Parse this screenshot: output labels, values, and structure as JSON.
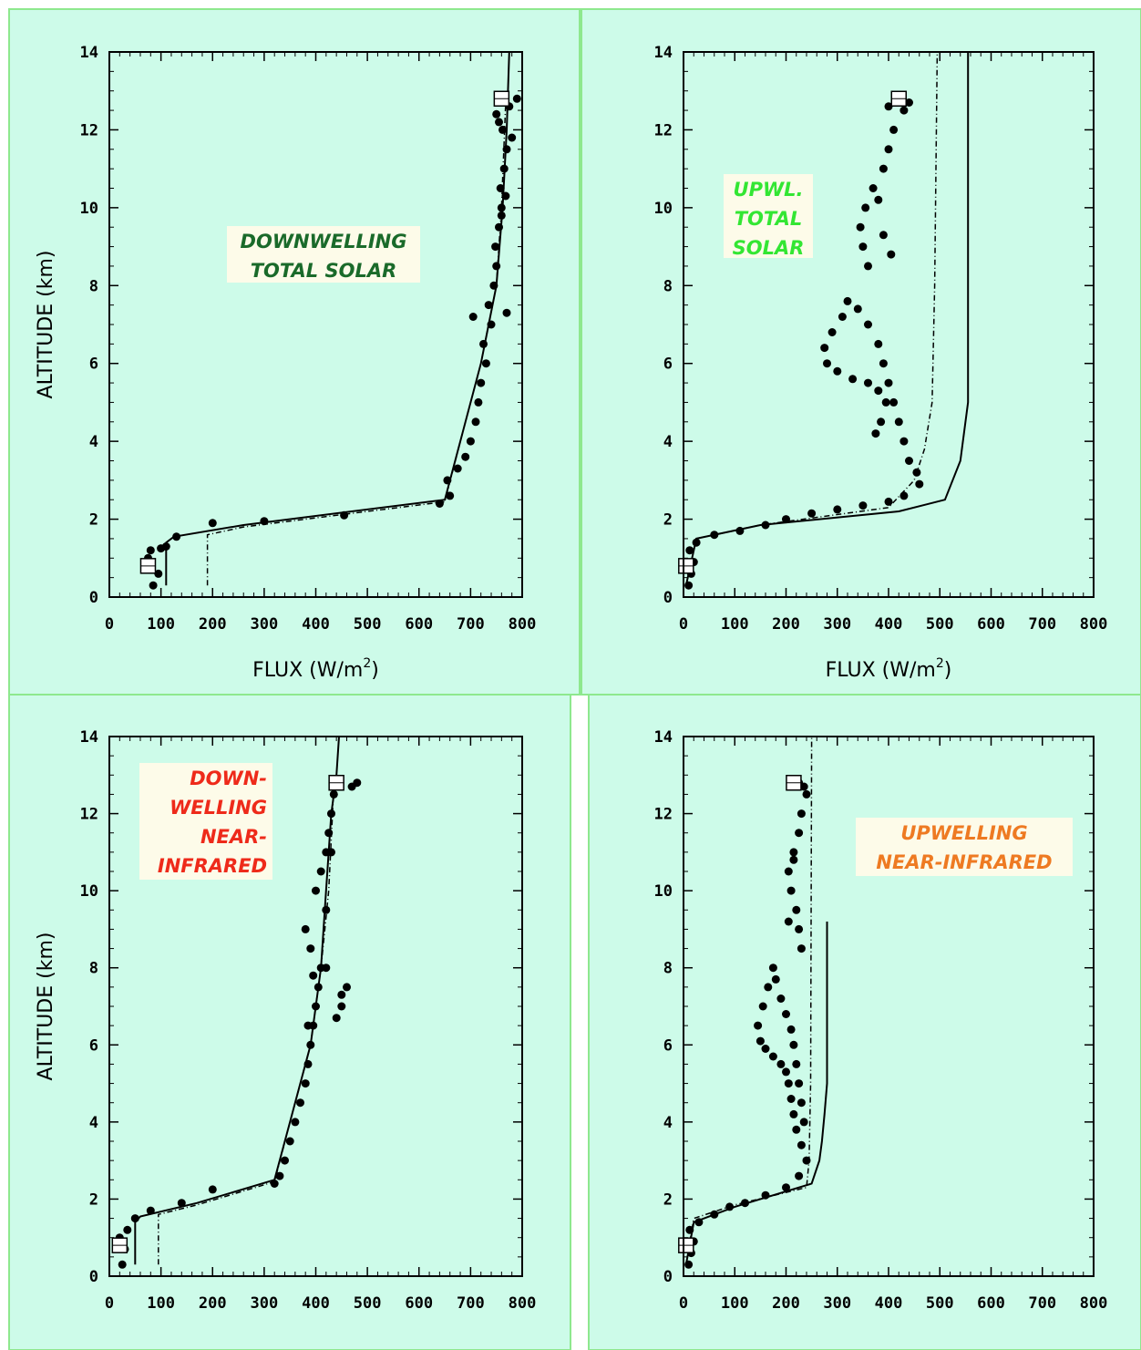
{
  "colors": {
    "panel_background": "#cdfbe9",
    "panel_border": "#8ee88e",
    "label_box": "#fdfbe9",
    "ink": "#000000"
  },
  "chart_data": [
    {
      "type": "line",
      "annotation": [
        "DOWNWELLING",
        "TOTAL SOLAR"
      ],
      "annotation_color": "#1a6a2a",
      "xlabel": "FLUX (W/m",
      "xlabel_superscript": "2",
      "xlabel_suffix": ")",
      "ylabel": "ALTITUDE (km)",
      "xlim": [
        0,
        800
      ],
      "ylim": [
        0,
        14
      ],
      "xticks": [
        0,
        100,
        200,
        300,
        400,
        500,
        600,
        700,
        800
      ],
      "yticks": [
        0,
        2,
        4,
        6,
        8,
        10,
        12,
        14
      ],
      "grid": false,
      "series": [
        {
          "kind": "solid",
          "x": [
            110,
            110,
            125,
            260,
            650,
            680,
            720,
            750,
            762,
            770,
            775
          ],
          "y": [
            0.3,
            1.4,
            1.55,
            1.85,
            2.5,
            4,
            6,
            8,
            10,
            12,
            14
          ]
        },
        {
          "kind": "dash-dot",
          "x": [
            190,
            190,
            260,
            650,
            680,
            720,
            750,
            760,
            768
          ],
          "y": [
            0.3,
            1.6,
            1.8,
            2.45,
            4,
            6,
            8,
            10,
            12.7
          ]
        },
        {
          "kind": "points",
          "x": [
            85,
            95,
            75,
            80,
            100,
            110,
            130,
            200,
            300,
            455,
            640,
            660,
            655,
            675,
            690,
            700,
            710,
            715,
            720,
            730,
            725,
            740,
            705,
            735,
            745,
            750,
            748,
            755,
            760,
            758,
            765,
            770,
            762,
            755,
            750,
            790,
            765,
            775,
            770,
            760,
            780,
            768
          ],
          "y": [
            0.3,
            0.6,
            1.0,
            1.2,
            1.25,
            1.3,
            1.55,
            1.9,
            1.95,
            2.1,
            2.4,
            2.6,
            3.0,
            3.3,
            3.6,
            4.0,
            4.5,
            5.0,
            5.5,
            6.0,
            6.5,
            7.0,
            7.2,
            7.5,
            8.0,
            8.5,
            9.0,
            9.5,
            10.0,
            10.5,
            11.0,
            11.5,
            12.0,
            12.2,
            12.4,
            12.8,
            12.7,
            12.6,
            7.3,
            9.8,
            11.8,
            10.3
          ]
        },
        {
          "kind": "marker",
          "x": [
            75,
            760
          ],
          "y": [
            0.8,
            12.8
          ]
        }
      ]
    },
    {
      "type": "line",
      "annotation": [
        "UPWL.",
        "TOTAL",
        "SOLAR"
      ],
      "annotation_color": "#33e633",
      "xlabel": "FLUX (W/m",
      "xlabel_superscript": "2",
      "xlabel_suffix": ")",
      "ylabel": "",
      "xlim": [
        0,
        800
      ],
      "ylim": [
        0,
        14
      ],
      "xticks": [
        0,
        100,
        200,
        300,
        400,
        500,
        600,
        700,
        800
      ],
      "yticks": [
        0,
        2,
        4,
        6,
        8,
        10,
        12,
        14
      ],
      "grid": false,
      "series": [
        {
          "kind": "solid",
          "x": [
            5,
            25,
            150,
            420,
            510,
            540,
            555,
            555
          ],
          "y": [
            0.3,
            1.5,
            1.85,
            2.2,
            2.5,
            3.5,
            5,
            14
          ]
        },
        {
          "kind": "dash-dot",
          "x": [
            5,
            25,
            150,
            400,
            450,
            470,
            485,
            490,
            495
          ],
          "y": [
            0.3,
            1.5,
            1.85,
            2.3,
            3.0,
            3.8,
            5.0,
            8.0,
            14.0
          ]
        },
        {
          "kind": "points",
          "x": [
            10,
            15,
            20,
            12,
            25,
            60,
            110,
            160,
            200,
            250,
            300,
            350,
            400,
            430,
            460,
            455,
            440,
            430,
            420,
            410,
            380,
            360,
            330,
            300,
            280,
            275,
            290,
            310,
            320,
            340,
            360,
            380,
            390,
            400,
            395,
            385,
            375,
            360,
            350,
            345,
            355,
            370,
            390,
            400,
            410,
            430,
            440,
            420,
            400,
            380,
            390,
            405
          ],
          "y": [
            0.3,
            0.6,
            0.9,
            1.2,
            1.4,
            1.6,
            1.7,
            1.85,
            2.0,
            2.15,
            2.25,
            2.35,
            2.45,
            2.6,
            2.9,
            3.2,
            3.5,
            4.0,
            4.5,
            5.0,
            5.3,
            5.5,
            5.6,
            5.8,
            6.0,
            6.4,
            6.8,
            7.2,
            7.6,
            7.4,
            7.0,
            6.5,
            6.0,
            5.5,
            5.0,
            4.5,
            4.2,
            8.5,
            9.0,
            9.5,
            10.0,
            10.5,
            11.0,
            11.5,
            12.0,
            12.5,
            12.7,
            12.8,
            12.6,
            10.2,
            9.3,
            8.8
          ]
        },
        {
          "kind": "marker",
          "x": [
            5,
            420
          ],
          "y": [
            0.8,
            12.8
          ]
        }
      ]
    },
    {
      "type": "line",
      "annotation": [
        "DOWN-",
        "WELLING",
        "NEAR-",
        "INFRARED"
      ],
      "annotation_color": "#ee2a1a",
      "xlabel": "",
      "ylabel": "ALTITUDE (km)",
      "xlim": [
        0,
        800
      ],
      "ylim": [
        0,
        14
      ],
      "xticks": [
        0,
        100,
        200,
        300,
        400,
        500,
        600,
        700,
        800
      ],
      "yticks": [
        0,
        2,
        4,
        6,
        8,
        10,
        12,
        14
      ],
      "grid": false,
      "series": [
        {
          "kind": "solid",
          "x": [
            50,
            50,
            60,
            170,
            320,
            350,
            390,
            410,
            420,
            430,
            440,
            445
          ],
          "y": [
            0.3,
            1.4,
            1.55,
            1.9,
            2.5,
            4,
            6,
            8,
            10,
            12,
            13,
            14
          ]
        },
        {
          "kind": "dash-dot",
          "x": [
            95,
            95,
            170,
            320,
            350,
            390,
            410,
            425,
            435
          ],
          "y": [
            0.3,
            1.6,
            1.85,
            2.45,
            4,
            6,
            8,
            10,
            12.7
          ]
        },
        {
          "kind": "points",
          "x": [
            25,
            30,
            20,
            35,
            50,
            80,
            140,
            200,
            320,
            330,
            340,
            350,
            360,
            370,
            380,
            385,
            390,
            395,
            400,
            405,
            410,
            390,
            380,
            420,
            450,
            400,
            410,
            420,
            425,
            430,
            435,
            440,
            420,
            430,
            470,
            480,
            440,
            450,
            460,
            385,
            395
          ],
          "y": [
            0.3,
            0.7,
            1.0,
            1.2,
            1.5,
            1.7,
            1.9,
            2.25,
            2.4,
            2.6,
            3.0,
            3.5,
            4.0,
            4.5,
            5.0,
            5.5,
            6.0,
            6.5,
            7.0,
            7.5,
            8.0,
            8.5,
            9.0,
            9.5,
            7.3,
            10.0,
            10.5,
            11.0,
            11.5,
            12.0,
            12.5,
            12.8,
            8.0,
            11.0,
            12.7,
            12.8,
            6.7,
            7.0,
            7.5,
            6.5,
            7.8
          ]
        },
        {
          "kind": "marker",
          "x": [
            20,
            440
          ],
          "y": [
            0.8,
            12.8
          ]
        }
      ]
    },
    {
      "type": "line",
      "annotation": [
        "UPWELLING",
        "NEAR-INFRARED"
      ],
      "annotation_color": "#ee7a22",
      "xlabel": "",
      "ylabel": "",
      "xlim": [
        0,
        800
      ],
      "ylim": [
        0,
        14
      ],
      "xticks": [
        0,
        100,
        200,
        300,
        400,
        500,
        600,
        700,
        800
      ],
      "yticks": [
        0,
        2,
        4,
        6,
        8,
        10,
        12,
        14
      ],
      "grid": false,
      "series": [
        {
          "kind": "solid",
          "x": [
            5,
            20,
            100,
            250,
            265,
            270,
            275,
            280,
            280
          ],
          "y": [
            0.3,
            1.4,
            1.8,
            2.4,
            3.0,
            3.5,
            4.2,
            5.0,
            9.2
          ]
        },
        {
          "kind": "dash-dot",
          "x": [
            5,
            20,
            100,
            240,
            245,
            248,
            250
          ],
          "y": [
            0.3,
            1.5,
            1.85,
            2.3,
            3.0,
            5.0,
            14.0
          ]
        },
        {
          "kind": "points",
          "x": [
            10,
            15,
            20,
            12,
            30,
            60,
            90,
            120,
            160,
            200,
            225,
            240,
            230,
            220,
            215,
            210,
            205,
            200,
            190,
            175,
            160,
            150,
            145,
            155,
            165,
            175,
            180,
            190,
            200,
            210,
            215,
            220,
            225,
            230,
            235,
            230,
            225,
            220,
            210,
            205,
            215,
            225,
            230,
            240,
            235,
            225,
            215,
            205
          ],
          "y": [
            0.3,
            0.6,
            0.9,
            1.2,
            1.4,
            1.6,
            1.8,
            1.9,
            2.1,
            2.3,
            2.6,
            3.0,
            3.4,
            3.8,
            4.2,
            4.6,
            5.0,
            5.3,
            5.5,
            5.7,
            5.9,
            6.1,
            6.5,
            7.0,
            7.5,
            8.0,
            7.7,
            7.2,
            6.8,
            6.4,
            6.0,
            5.5,
            5.0,
            4.5,
            4.0,
            8.5,
            9.0,
            9.5,
            10.0,
            10.5,
            11.0,
            11.5,
            12.0,
            12.5,
            12.7,
            12.8,
            10.8,
            9.2
          ]
        },
        {
          "kind": "marker",
          "x": [
            5,
            215
          ],
          "y": [
            0.8,
            12.8
          ]
        }
      ]
    }
  ]
}
